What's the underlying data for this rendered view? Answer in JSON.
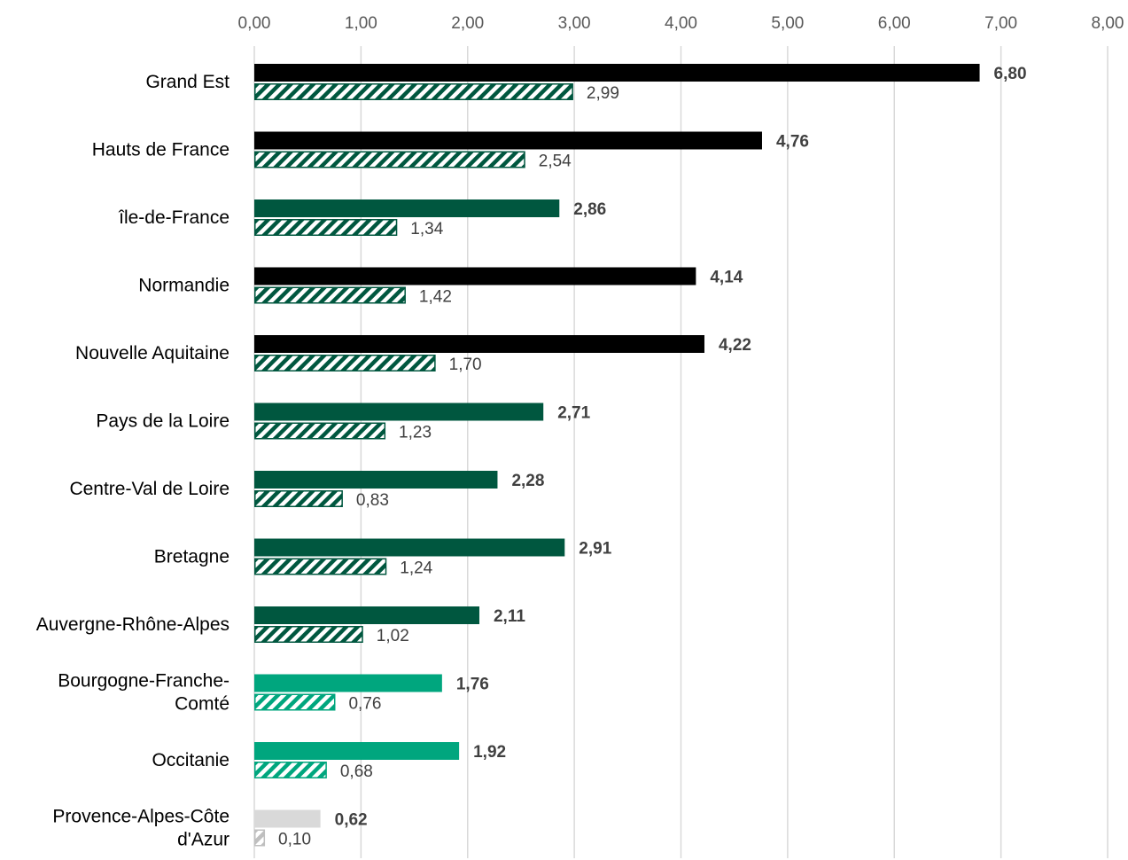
{
  "chart_data": {
    "type": "bar",
    "orientation": "horizontal",
    "xlim": [
      0,
      8
    ],
    "ticks": [
      "0,00",
      "1,00",
      "2,00",
      "3,00",
      "4,00",
      "5,00",
      "6,00",
      "7,00",
      "8,00"
    ],
    "grid": true,
    "legend": "none",
    "categories": [
      [
        "Grand Est"
      ],
      [
        "Hauts de France"
      ],
      [
        "île-de-France"
      ],
      [
        "Normandie"
      ],
      [
        "Nouvelle Aquitaine"
      ],
      [
        "Pays de la Loire"
      ],
      [
        "Centre-Val de Loire"
      ],
      [
        "Bretagne"
      ],
      [
        "Auvergne-Rhône-Alpes"
      ],
      [
        "Bourgogne-Franche-",
        "Comté"
      ],
      [
        "Occitanie"
      ],
      [
        "Provence-Alpes-Côte",
        "d'Azur"
      ]
    ],
    "series": [
      {
        "style": "solid",
        "values": [
          6.8,
          4.76,
          2.86,
          4.14,
          4.22,
          2.71,
          2.28,
          2.91,
          2.11,
          1.76,
          1.92,
          0.62
        ],
        "labels": [
          "6,80",
          "4,76",
          "2,86",
          "4,14",
          "4,22",
          "2,71",
          "2,28",
          "2,91",
          "2,11",
          "1,76",
          "1,92",
          "0,62"
        ]
      },
      {
        "style": "hatched",
        "values": [
          2.99,
          2.54,
          1.34,
          1.42,
          1.7,
          1.23,
          0.83,
          1.24,
          1.02,
          0.76,
          0.68,
          0.1
        ],
        "labels": [
          "2,99",
          "2,54",
          "1,34",
          "1,42",
          "1,70",
          "1,23",
          "0,83",
          "1,24",
          "1,02",
          "0,76",
          "0,68",
          "0,10"
        ]
      }
    ],
    "bar_colors": [
      "#000000",
      "#000000",
      "#00573f",
      "#000000",
      "#000000",
      "#00573f",
      "#00573f",
      "#00573f",
      "#00573f",
      "#00a67e",
      "#00a67e",
      "#d9d9d9"
    ],
    "hatch_outline_colors": [
      "#00573f",
      "#00573f",
      "#00573f",
      "#00573f",
      "#00573f",
      "#00573f",
      "#00573f",
      "#00573f",
      "#00573f",
      "#00a67e",
      "#00a67e",
      "#bfbfbf"
    ]
  }
}
